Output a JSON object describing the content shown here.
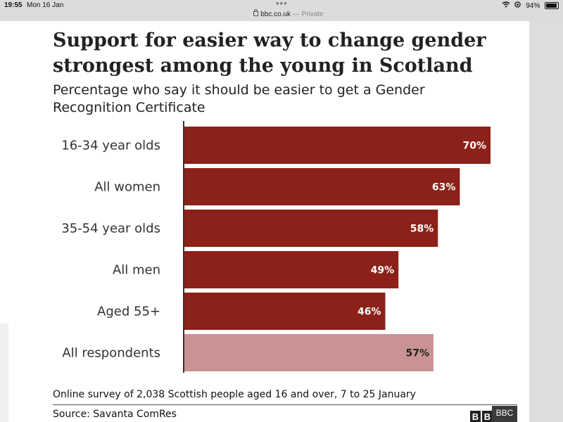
{
  "status_bar": {
    "time": "19:55",
    "date": "Mon 16 Jan",
    "url": "bbc.co.uk",
    "url_suffix": " — Private",
    "battery": "94%",
    "wifi_icon": "wifi-icon",
    "battery_icon": "battery-icon"
  },
  "figure": {
    "footnote": "Online survey of 2,038 Scottish people aged 16 and over, 7 to 25 January",
    "source": "Source: Savanta ComRes",
    "logo_letters": [
      "B",
      "B"
    ],
    "overlay_label": "BBC"
  },
  "colors": {
    "bar": "#8b2118",
    "bar_highlight": "#c99393",
    "value_text_dark_bar": "#ffffff",
    "value_text_light_bar": "#222222"
  },
  "chart_data": {
    "type": "bar",
    "orientation": "horizontal",
    "title": "Support for easier way to change gender strongest among the young in Scotland",
    "subtitle": "Percentage who say it should be easier to get a Gender Recognition Certificate",
    "categories": [
      "16-34 year olds",
      "All women",
      "35-54 year olds",
      "All men",
      "Aged 55+",
      "All respondents"
    ],
    "values": [
      70,
      63,
      58,
      49,
      46,
      57
    ],
    "value_labels": [
      "70%",
      "63%",
      "58%",
      "49%",
      "46%",
      "57%"
    ],
    "highlighted": [
      false,
      false,
      false,
      false,
      false,
      true
    ],
    "unit": "%",
    "xlim": [
      0,
      70
    ],
    "grid": false,
    "xlabel": "",
    "ylabel": ""
  }
}
